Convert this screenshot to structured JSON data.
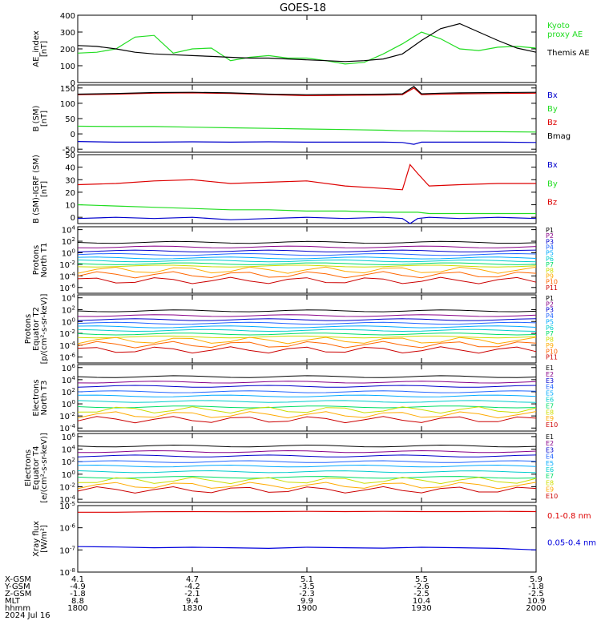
{
  "title": "GOES-18",
  "colors": {
    "black": "#000000",
    "red": "#dd0000",
    "green": "#22dd22",
    "blue": "#0000cc",
    "lime": "#00ee00",
    "xray_red": "#dd0000",
    "xray_blue": "#0000dd",
    "protons": [
      "#000000",
      "#880088",
      "#0000cc",
      "#2266ff",
      "#00aaff",
      "#00cccc",
      "#00dd66",
      "#ccdd00",
      "#ffaa00",
      "#ff6600",
      "#cc0000"
    ],
    "electrons": [
      "#000000",
      "#880088",
      "#0000cc",
      "#2266ff",
      "#00aaff",
      "#00cccc",
      "#00dd66",
      "#ccdd00",
      "#ffaa00",
      "#cc0000"
    ]
  },
  "chart_data": [
    {
      "type": "line",
      "id": "ae",
      "ylabel": "AE_index\n[nT]",
      "ylim": [
        0,
        400
      ],
      "yticks": [
        "400",
        "300",
        "200",
        "100",
        "0"
      ],
      "x": [
        1800,
        1805,
        1810,
        1815,
        1820,
        1825,
        1830,
        1835,
        1840,
        1845,
        1850,
        1855,
        1900,
        1905,
        1910,
        1915,
        1920,
        1925,
        1930,
        1935,
        1940,
        1945,
        1950,
        1955,
        2000
      ],
      "series": [
        {
          "name": "Kyoto\nproxy AE",
          "color": "#22dd22",
          "values": [
            175,
            180,
            200,
            270,
            280,
            175,
            200,
            205,
            130,
            150,
            160,
            145,
            145,
            130,
            110,
            120,
            170,
            230,
            300,
            260,
            200,
            190,
            210,
            215,
            205
          ]
        },
        {
          "name": "Themis AE",
          "color": "#000000",
          "values": [
            220,
            215,
            200,
            180,
            170,
            165,
            160,
            155,
            150,
            145,
            145,
            140,
            135,
            130,
            125,
            130,
            140,
            170,
            250,
            320,
            350,
            300,
            250,
            205,
            180
          ]
        }
      ],
      "legend_side": "right"
    },
    {
      "type": "line",
      "id": "bsm",
      "ylabel": "B (SM)\n[nT]",
      "ylim": [
        -60,
        160
      ],
      "yticks": [
        "150",
        "100",
        "50",
        "0",
        "-50"
      ],
      "x": [
        1800,
        1810,
        1820,
        1830,
        1840,
        1850,
        1900,
        1910,
        1920,
        1925,
        1928,
        1930,
        1935,
        1940,
        1950,
        2000
      ],
      "series": [
        {
          "name": "Bx",
          "color": "#0000cc",
          "values": [
            -25,
            -27,
            -27,
            -26,
            -27,
            -26,
            -27,
            -27,
            -27,
            -28,
            -34,
            -27,
            -27,
            -27,
            -27,
            -28
          ]
        },
        {
          "name": "By",
          "color": "#22dd22",
          "values": [
            25,
            24,
            24,
            22,
            20,
            18,
            16,
            14,
            12,
            10,
            10,
            10,
            9,
            8,
            7,
            6
          ]
        },
        {
          "name": "Bz",
          "color": "#dd0000",
          "values": [
            128,
            130,
            133,
            134,
            132,
            128,
            125,
            126,
            127,
            128,
            150,
            128,
            130,
            131,
            132,
            133
          ]
        },
        {
          "name": "Bmag",
          "color": "#000000",
          "values": [
            130,
            132,
            135,
            136,
            134,
            130,
            128,
            129,
            130,
            131,
            155,
            131,
            133,
            134,
            135,
            136
          ]
        }
      ]
    },
    {
      "type": "line",
      "id": "bigrf",
      "ylabel": "B (SM)-IGRF (SM)\n[nT]",
      "ylim": [
        -5,
        50
      ],
      "yticks": [
        "50",
        "40",
        "30",
        "20",
        "10",
        "0"
      ],
      "x": [
        1800,
        1810,
        1820,
        1830,
        1840,
        1850,
        1900,
        1910,
        1920,
        1925,
        1927,
        1929,
        1932,
        1940,
        1950,
        2000
      ],
      "series": [
        {
          "name": "Bx",
          "color": "#0000cc",
          "values": [
            -1,
            0,
            -1,
            0,
            -2,
            -1,
            0,
            -1,
            0,
            -1,
            -5,
            -1,
            0,
            -1,
            0,
            -1
          ]
        },
        {
          "name": "By",
          "color": "#22dd22",
          "values": [
            10,
            9,
            8,
            7,
            6,
            6,
            5,
            5,
            4,
            4,
            4,
            4,
            3,
            3,
            3,
            3
          ]
        },
        {
          "name": "Bz",
          "color": "#dd0000",
          "values": [
            26,
            27,
            29,
            30,
            27,
            28,
            29,
            25,
            23,
            22,
            42,
            35,
            25,
            26,
            27,
            27
          ]
        }
      ]
    },
    {
      "type": "line",
      "id": "protons_north",
      "ylabel": "Protons\nNorth T1",
      "scale": "log",
      "ylim_log": [
        -7,
        4.5
      ],
      "yticks": [
        "10^4",
        "10^2",
        "10^0",
        "10^-2",
        "10^-4",
        "10^-6"
      ],
      "labels": [
        "P1",
        "P2",
        "P3",
        "P4",
        "P5",
        "P6",
        "P7",
        "P8",
        "P9",
        "P10",
        "P11"
      ],
      "levels_log": [
        1.8,
        1.0,
        0.3,
        -0.3,
        -0.9,
        -1.4,
        -1.9,
        -2.3,
        -3.0,
        -3.8,
        -4.8
      ]
    },
    {
      "type": "line",
      "id": "protons_equator",
      "ylabel": "Protons\nEquator T2\n[p/(cm²-s-sr-keV)]",
      "scale": "log",
      "ylim_log": [
        -7,
        4.5
      ],
      "yticks": [
        "10^4",
        "10^2",
        "10^0",
        "10^-2",
        "10^-4",
        "10^-6"
      ],
      "labels": [
        "P1",
        "P2",
        "P3",
        "P4",
        "P5",
        "P6",
        "P7",
        "P8",
        "P9",
        "P10",
        "P11"
      ],
      "levels_log": [
        1.8,
        1.0,
        0.3,
        -0.3,
        -0.9,
        -1.5,
        -2.1,
        -2.6,
        -3.2,
        -3.9,
        -4.8
      ]
    },
    {
      "type": "line",
      "id": "electrons_north",
      "ylabel": "Electrons\nNorth T3",
      "scale": "log",
      "ylim_log": [
        -4.5,
        6.5
      ],
      "yticks": [
        "10^6",
        "10^4",
        "10^2",
        "10^0",
        "10^-2",
        "10^-4"
      ],
      "labels": [
        "E1",
        "E2",
        "E3",
        "E4",
        "E5",
        "E6",
        "E7",
        "E8",
        "E9",
        "E10"
      ],
      "levels_log": [
        4.5,
        3.6,
        2.9,
        2.0,
        1.3,
        0.4,
        -0.5,
        -1.0,
        -1.8,
        -2.6
      ]
    },
    {
      "type": "line",
      "id": "electrons_equator",
      "ylabel": "Electrons\nEquator T4\n[e/(cm²-s-sr-keV)]",
      "scale": "log",
      "ylim_log": [
        -4.5,
        6.5
      ],
      "yticks": [
        "10^6",
        "10^4",
        "10^2",
        "10^0",
        "10^-2",
        "10^-4"
      ],
      "labels": [
        "E1",
        "E2",
        "E3",
        "E4",
        "E5",
        "E6",
        "E7",
        "E8",
        "E9",
        "E10"
      ],
      "levels_log": [
        4.5,
        3.6,
        2.9,
        2.0,
        1.3,
        0.4,
        -0.5,
        -1.0,
        -1.8,
        -2.5
      ]
    },
    {
      "type": "line",
      "id": "xray",
      "ylabel": "Xray flux\n[W/m²]",
      "scale": "log",
      "ylim_log": [
        -8,
        -5
      ],
      "yticks": [
        "10^-5",
        "10^-6",
        "10^-7",
        "10^-8"
      ],
      "x": [
        1800,
        1810,
        1820,
        1830,
        1840,
        1850,
        1900,
        1910,
        1920,
        1930,
        1940,
        1950,
        2000
      ],
      "series": [
        {
          "name": "0.1-0.8 nm",
          "color": "#dd0000",
          "values_log": [
            -5.3,
            -5.3,
            -5.28,
            -5.27,
            -5.28,
            -5.27,
            -5.26,
            -5.27,
            -5.26,
            -5.27,
            -5.27,
            -5.26,
            -5.27
          ]
        },
        {
          "name": "0.05-0.4 nm",
          "color": "#0000dd",
          "values_log": [
            -6.85,
            -6.87,
            -6.9,
            -6.88,
            -6.9,
            -6.93,
            -6.88,
            -6.9,
            -6.92,
            -6.88,
            -6.9,
            -6.93,
            -7.0
          ]
        }
      ]
    }
  ],
  "xaxis": {
    "ticks": [
      1800,
      1830,
      1900,
      1930,
      2000
    ],
    "rows": [
      {
        "label": "X-GSM",
        "values": [
          "4.1",
          "4.7",
          "5.1",
          "5.5",
          "5.9"
        ]
      },
      {
        "label": "Y-GSM",
        "values": [
          "-4.9",
          "-4.2",
          "-3.5",
          "-2.6",
          "-1.8"
        ]
      },
      {
        "label": "Z-GSM",
        "values": [
          "-1.8",
          "-2.1",
          "-2.3",
          "-2.5",
          "-2.5"
        ]
      },
      {
        "label": "MLT",
        "values": [
          "8.8",
          "9.4",
          "9.9",
          "10.4",
          "10.9"
        ]
      },
      {
        "label": "hhmm",
        "values": [
          "1800",
          "1830",
          "1900",
          "1930",
          "2000"
        ]
      }
    ],
    "date": "2024 Jul 16"
  }
}
